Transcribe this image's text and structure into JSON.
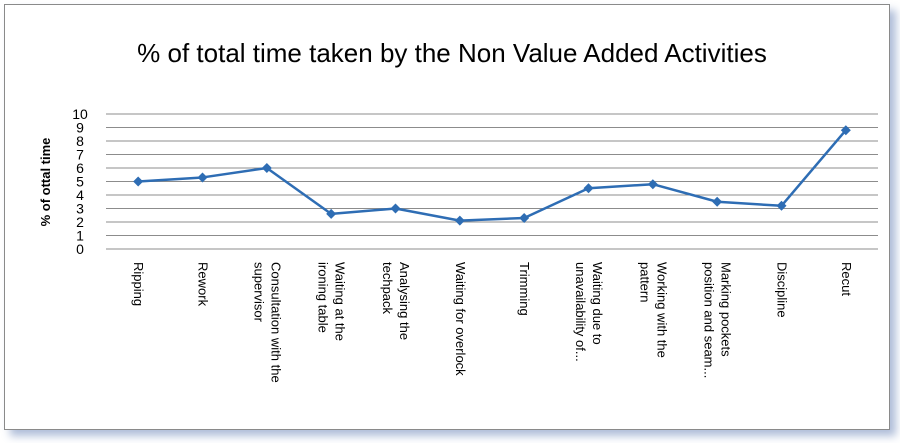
{
  "chart_data": {
    "type": "line",
    "title": "% of total time taken by the Non Value Added Activities",
    "ylabel": "% of ottal time",
    "xlabel": "",
    "ylim": [
      0,
      10
    ],
    "yticks": [
      "0",
      "1",
      "2",
      "3",
      "4",
      "5",
      "6",
      "7",
      "8",
      "9",
      "10"
    ],
    "grid": true,
    "categories": [
      "Ripping",
      "Rework",
      "Consultation with the supervisor",
      "Waiting at the ironing table",
      "Analysing the techpack",
      "Waiting for overlock",
      "Trimming",
      "Waiting due to unavailability of...",
      "Working with the pattern",
      "Marking pockets position and seam...",
      "Discipline",
      "Recut"
    ],
    "category_lines": [
      [
        "Ripping"
      ],
      [
        "Rework"
      ],
      [
        "Consultation with the",
        "supervisor"
      ],
      [
        "Waiting at the",
        "ironing table"
      ],
      [
        "Analysing the",
        "techpack"
      ],
      [
        "Waiting for overlock"
      ],
      [
        "Trimming"
      ],
      [
        "Waiting due to",
        "unavailability of..."
      ],
      [
        "Working with the",
        "pattern"
      ],
      [
        "Marking pockets",
        "position and seam..."
      ],
      [
        "Discipline"
      ],
      [
        "Recut"
      ]
    ],
    "series": [
      {
        "values": [
          5.0,
          5.3,
          6.0,
          2.6,
          3.0,
          2.1,
          2.3,
          4.5,
          4.8,
          3.5,
          3.2,
          8.8
        ]
      }
    ],
    "colors": {
      "line": "#2e6db4",
      "grid": "#8c8c8c"
    }
  }
}
